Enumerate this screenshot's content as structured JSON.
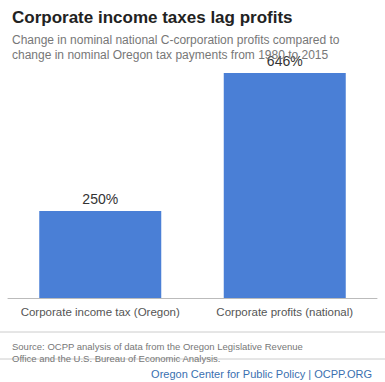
{
  "chart_data": {
    "type": "bar",
    "title": "Corporate income taxes lag profits",
    "subtitle": "Change in nominal national C-corporation profits compared to change in nominal Oregon tax payments from 1980 to 2015",
    "source": "Source: OCPP analysis of data from the Oregon Legislative Revenue Office and the U.S. Bureau of Economic Analysis.",
    "footer": "Oregon Center for Public Policy | OCPP.ORG",
    "categories": [
      "Corporate income tax (Oregon)",
      "Corporate profits (national)"
    ],
    "values": [
      250,
      646
    ],
    "value_labels": [
      "250%",
      "646%"
    ],
    "data_labels": true,
    "color": "#4a7fd6",
    "ylim": [
      0,
      646
    ],
    "grid": false,
    "tick_labels": "x"
  }
}
